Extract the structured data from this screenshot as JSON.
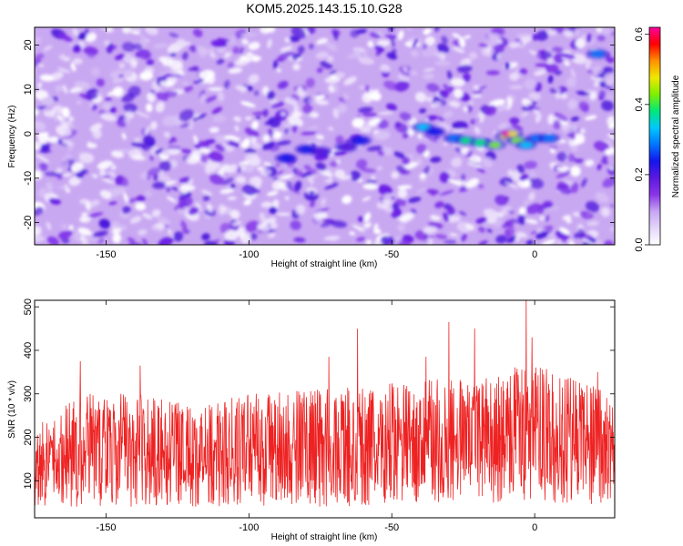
{
  "figure_title": "KOM5.2025.143.15.10.G28",
  "chart_data": [
    {
      "type": "heatmap",
      "xlabel": "Height of straight line (km)",
      "ylabel": "Frequency (Hz)",
      "xlim": [
        -175,
        28
      ],
      "ylim": [
        -25,
        24
      ],
      "xticks": [
        -150,
        -100,
        -50,
        0
      ],
      "xtick_labels": [
        "-150",
        "-100",
        "-50",
        "0"
      ],
      "yticks": [
        -20,
        -10,
        0,
        10,
        20
      ],
      "ytick_labels": [
        "-20",
        "-10",
        "0",
        "10",
        "20"
      ],
      "colorbar": {
        "label": "Normalized spectral amplitude",
        "range": [
          0,
          0.62
        ],
        "ticks": [
          0.0,
          0.2,
          0.4,
          0.6
        ],
        "tick_labels": [
          "0.0",
          "0.2",
          "0.4",
          "0.6"
        ],
        "colormap": [
          "#ffffff",
          "#e4d6fa",
          "#c7a5f2",
          "#8a35e8",
          "#5b18e0",
          "#1515ee",
          "#0077ff",
          "#00c8ff",
          "#00e87a",
          "#7ff000",
          "#f0e800",
          "#ff9000",
          "#ff0000",
          "#ff00a0"
        ]
      },
      "background_color": "#c9a8f2",
      "noise_color": "#6a1ee6",
      "ridge_points": [
        {
          "x": -87,
          "y": -5.5,
          "v": 0.22
        },
        {
          "x": -80,
          "y": -3.5,
          "v": 0.25
        },
        {
          "x": -75,
          "y": -4.0,
          "v": 0.2
        },
        {
          "x": -66,
          "y": -3.0,
          "v": 0.18
        },
        {
          "x": -61,
          "y": -1.5,
          "v": 0.24
        },
        {
          "x": -39,
          "y": 1.5,
          "v": 0.35
        },
        {
          "x": -35,
          "y": 0.5,
          "v": 0.22
        },
        {
          "x": -28,
          "y": -1.0,
          "v": 0.3
        },
        {
          "x": -24,
          "y": -1.5,
          "v": 0.36
        },
        {
          "x": -19,
          "y": -2.0,
          "v": 0.4
        },
        {
          "x": -14,
          "y": -2.5,
          "v": 0.44
        },
        {
          "x": -10,
          "y": -0.5,
          "v": 0.46
        },
        {
          "x": -8,
          "y": 0.0,
          "v": 0.5
        },
        {
          "x": -6,
          "y": -1.5,
          "v": 0.42
        },
        {
          "x": -3,
          "y": -2.5,
          "v": 0.33
        },
        {
          "x": 1,
          "y": -1.0,
          "v": 0.3
        },
        {
          "x": 5,
          "y": -1.0,
          "v": 0.28
        },
        {
          "x": 22,
          "y": 18.0,
          "v": 0.3
        }
      ],
      "peak": {
        "x": -10,
        "y": 0.0,
        "v": 0.62
      }
    },
    {
      "type": "line",
      "xlabel": "Height of straight line (km)",
      "ylabel": "SNR (10 * v/v)",
      "xlim": [
        -175,
        28
      ],
      "ylim": [
        15,
        515
      ],
      "xticks": [
        -150,
        -100,
        -50,
        0
      ],
      "xtick_labels": [
        "-150",
        "-100",
        "-50",
        "0"
      ],
      "yticks": [
        100,
        200,
        300,
        400,
        500
      ],
      "ytick_labels": [
        "100",
        "200",
        "300",
        "400",
        "500"
      ],
      "series": [
        {
          "color": "#ee2222",
          "envelope": [
            {
              "x": -175,
              "low": 40,
              "high": 230
            },
            {
              "x": -160,
              "low": 40,
              "high": 300
            },
            {
              "x": -140,
              "low": 40,
              "high": 300
            },
            {
              "x": -120,
              "low": 40,
              "high": 275
            },
            {
              "x": -100,
              "low": 40,
              "high": 300
            },
            {
              "x": -80,
              "low": 40,
              "high": 310
            },
            {
              "x": -60,
              "low": 40,
              "high": 320
            },
            {
              "x": -40,
              "low": 50,
              "high": 330
            },
            {
              "x": -20,
              "low": 50,
              "high": 350
            },
            {
              "x": 0,
              "low": 50,
              "high": 370
            },
            {
              "x": 28,
              "low": 45,
              "high": 300
            }
          ],
          "peaks": [
            {
              "x": -159,
              "y": 375
            },
            {
              "x": -138,
              "y": 365
            },
            {
              "x": -72,
              "y": 385
            },
            {
              "x": -62,
              "y": 450
            },
            {
              "x": -38,
              "y": 385
            },
            {
              "x": -30,
              "y": 465
            },
            {
              "x": -21,
              "y": 450
            },
            {
              "x": -3,
              "y": 515
            },
            {
              "x": -1,
              "y": 430
            },
            {
              "x": 22,
              "y": 350
            }
          ]
        }
      ]
    }
  ]
}
